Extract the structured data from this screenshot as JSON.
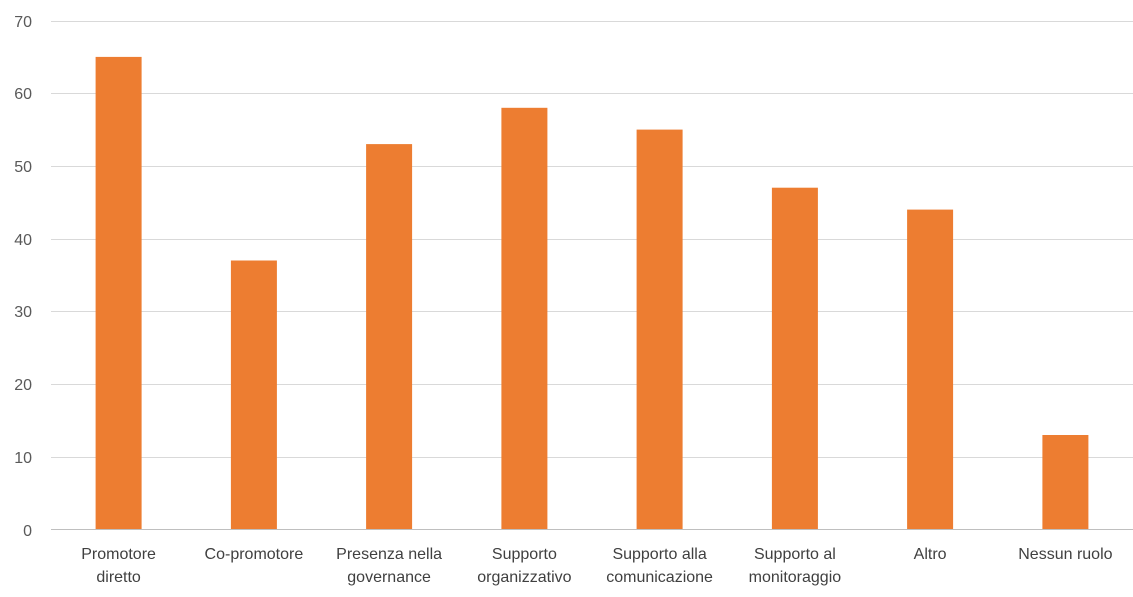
{
  "chart_data": {
    "type": "bar",
    "title": "",
    "xlabel": "",
    "ylabel": "",
    "categories": [
      [
        "Promotore",
        "diretto"
      ],
      [
        "Co-promotore"
      ],
      [
        "Presenza nella",
        "governance"
      ],
      [
        "Supporto",
        "organizzativo"
      ],
      [
        "Supporto alla",
        "comunicazione"
      ],
      [
        "Supporto al",
        "monitoraggio"
      ],
      [
        "Altro"
      ],
      [
        "Nessun ruolo"
      ]
    ],
    "values": [
      65,
      37,
      53,
      58,
      55,
      47,
      44,
      13
    ],
    "ylim": [
      0,
      70
    ],
    "yticks": [
      0,
      10,
      20,
      30,
      40,
      50,
      60,
      70
    ],
    "grid": true,
    "legend": "none",
    "bar_color": "#ED7D31"
  }
}
